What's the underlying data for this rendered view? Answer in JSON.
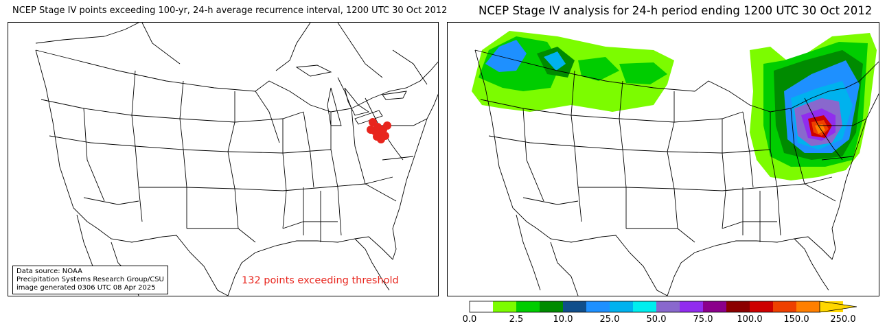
{
  "left_map": {
    "title": "NCEP Stage IV points exceeding 100-yr, 24-h average recurrence interval, 1200 UTC 30 Oct 2012",
    "source_lines": [
      "Data source: NOAA",
      "Precipitation Systems Research Group/CSU",
      "image generated 0306 UTC 08 Apr 2025"
    ],
    "annotation": "132 points exceeding threshold",
    "marker_color": "#e8251d"
  },
  "right_map": {
    "title": "NCEP Stage IV analysis for 24-h period ending 1200 UTC 30 Oct 2012"
  },
  "colorbar": {
    "colors": [
      "#ffffff",
      "#7cfc00",
      "#00cd00",
      "#008b00",
      "#104e8b",
      "#1e90ff",
      "#00b2ee",
      "#00eeee",
      "#8968cd",
      "#912cee",
      "#8b008b",
      "#8b0000",
      "#cd0000",
      "#ee4000",
      "#ff7f00",
      "#ffd700"
    ],
    "tick_labels": [
      "0.0",
      "2.5",
      "10.0",
      "25.0",
      "50.0",
      "75.0",
      "100.0",
      "150.0",
      "250.0"
    ]
  }
}
